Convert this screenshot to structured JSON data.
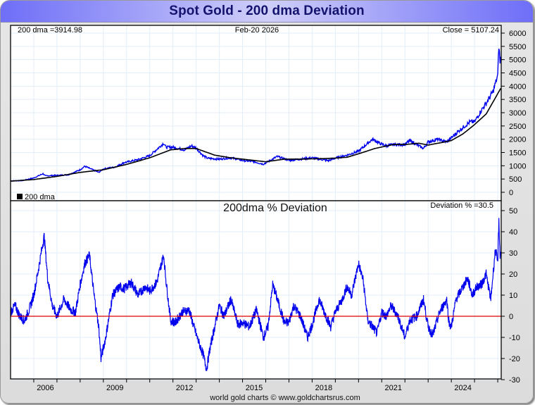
{
  "title": "Spot Gold - 200 dma Deviation",
  "footer": "world gold charts © www.goldchartsrus.com",
  "colors": {
    "price": "#0000ee",
    "dma": "#000000",
    "deviation": "#0000ee",
    "zero_line": "#dd0000",
    "grid": "#e3eef8"
  },
  "chart_data": [
    {
      "type": "line",
      "title": "",
      "header": {
        "left": "200 dma =3914.98",
        "center": "Feb-20  2026",
        "right": "Close = 5107.24"
      },
      "legend": {
        "label": "200 dma",
        "placement": "bottom-left"
      },
      "ylim": [
        0,
        6000
      ],
      "yticks": [
        "0",
        "500",
        "1000",
        "1500",
        "2000",
        "2500",
        "3000",
        "3500",
        "4000",
        "4500",
        "5000",
        "5500",
        "6000"
      ],
      "xlim": [
        2005.0,
        2026.15
      ],
      "grid": true,
      "series": [
        {
          "name": "Spot Gold",
          "x": [
            2005.0,
            2005.5,
            2006.0,
            2006.4,
            2006.5,
            2007.0,
            2007.5,
            2008.0,
            2008.2,
            2008.8,
            2009.0,
            2009.5,
            2009.9,
            2010.5,
            2011.0,
            2011.6,
            2011.7,
            2012.0,
            2012.5,
            2012.8,
            2013.0,
            2013.3,
            2013.5,
            2014.0,
            2014.5,
            2015.0,
            2015.5,
            2015.9,
            2016.5,
            2017.0,
            2017.5,
            2018.0,
            2018.7,
            2019.0,
            2019.5,
            2020.0,
            2020.6,
            2020.9,
            2021.2,
            2021.5,
            2022.0,
            2022.2,
            2022.8,
            2023.0,
            2023.4,
            2023.8,
            2024.0,
            2024.3,
            2024.8,
            2025.0,
            2025.3,
            2025.5,
            2025.8,
            2026.0,
            2026.05,
            2026.1,
            2026.13
          ],
          "y": [
            430,
            440,
            540,
            700,
            620,
            640,
            660,
            850,
            980,
            750,
            880,
            950,
            1120,
            1230,
            1380,
            1850,
            1700,
            1700,
            1600,
            1750,
            1670,
            1380,
            1280,
            1250,
            1300,
            1200,
            1150,
            1060,
            1350,
            1200,
            1250,
            1300,
            1190,
            1290,
            1400,
            1550,
            2000,
            1850,
            1750,
            1800,
            1800,
            1950,
            1650,
            1900,
            2000,
            1900,
            2050,
            2300,
            2650,
            2650,
            3100,
            3350,
            3800,
            4400,
            5550,
            4900,
            5107
          ]
        },
        {
          "name": "200 dma",
          "x": [
            2005.0,
            2006.0,
            2007.0,
            2008.0,
            2009.0,
            2010.0,
            2011.0,
            2011.9,
            2012.5,
            2013.0,
            2013.8,
            2014.5,
            2015.5,
            2016.0,
            2016.8,
            2017.5,
            2018.5,
            2019.0,
            2019.5,
            2020.0,
            2020.7,
            2021.5,
            2022.0,
            2022.6,
            2023.0,
            2023.5,
            2024.0,
            2024.5,
            2025.0,
            2025.5,
            2026.13
          ],
          "y": [
            420,
            480,
            600,
            750,
            850,
            1050,
            1300,
            1600,
            1650,
            1650,
            1400,
            1300,
            1200,
            1150,
            1250,
            1250,
            1270,
            1290,
            1320,
            1450,
            1650,
            1800,
            1800,
            1850,
            1780,
            1860,
            1950,
            2200,
            2550,
            2950,
            3915
          ]
        }
      ]
    },
    {
      "type": "line",
      "title": "200dma  %  Deviation",
      "header": {
        "right": "Deviation % =30.5"
      },
      "ylim": [
        -30,
        50
      ],
      "yticks": [
        "-30",
        "-20",
        "-10",
        "0",
        "10",
        "20",
        "30",
        "40",
        "50"
      ],
      "xlim": [
        2005.0,
        2026.15
      ],
      "xticks": [
        "2006",
        "2009",
        "2012",
        "2015",
        "2018",
        "2021",
        "2024"
      ],
      "grid": true,
      "reference_line": 0,
      "series": [
        {
          "name": "Deviation %",
          "x": [
            2005.0,
            2005.2,
            2005.4,
            2005.6,
            2005.8,
            2006.0,
            2006.2,
            2006.35,
            2006.45,
            2006.6,
            2006.8,
            2007.0,
            2007.3,
            2007.6,
            2007.8,
            2008.0,
            2008.2,
            2008.4,
            2008.6,
            2008.8,
            2008.9,
            2009.1,
            2009.4,
            2009.7,
            2009.9,
            2010.2,
            2010.5,
            2010.8,
            2011.0,
            2011.3,
            2011.6,
            2011.7,
            2011.9,
            2012.1,
            2012.4,
            2012.7,
            2012.9,
            2013.1,
            2013.3,
            2013.45,
            2013.6,
            2013.8,
            2014.0,
            2014.2,
            2014.5,
            2014.8,
            2015.0,
            2015.3,
            2015.6,
            2015.9,
            2016.1,
            2016.3,
            2016.5,
            2016.8,
            2017.0,
            2017.2,
            2017.5,
            2017.8,
            2018.0,
            2018.3,
            2018.6,
            2018.8,
            2019.0,
            2019.3,
            2019.5,
            2019.7,
            2020.0,
            2020.2,
            2020.4,
            2020.6,
            2020.8,
            2021.0,
            2021.2,
            2021.4,
            2021.7,
            2022.0,
            2022.2,
            2022.5,
            2022.8,
            2023.0,
            2023.2,
            2023.5,
            2023.8,
            2023.9,
            2024.0,
            2024.2,
            2024.4,
            2024.7,
            2024.9,
            2025.1,
            2025.3,
            2025.5,
            2025.7,
            2025.9,
            2026.0,
            2026.05,
            2026.1,
            2026.13
          ],
          "y": [
            2,
            5,
            0,
            -2,
            3,
            10,
            22,
            32,
            38,
            18,
            5,
            0,
            8,
            3,
            2,
            15,
            25,
            29,
            10,
            -5,
            -20,
            -10,
            10,
            14,
            13,
            16,
            10,
            14,
            12,
            16,
            29,
            17,
            -2,
            -3,
            2,
            3,
            -5,
            -12,
            -18,
            -25,
            -15,
            -5,
            5,
            0,
            8,
            -4,
            -3,
            -5,
            3,
            -10,
            -5,
            15,
            8,
            -3,
            -3,
            5,
            0,
            -10,
            -4,
            8,
            0,
            -5,
            2,
            8,
            14,
            10,
            25,
            17,
            -2,
            -5,
            -8,
            2,
            0,
            5,
            0,
            -10,
            -2,
            0,
            8,
            -5,
            -9,
            2,
            8,
            -3,
            -5,
            8,
            12,
            18,
            10,
            14,
            15,
            20,
            8,
            32,
            25,
            46,
            28,
            30.5
          ]
        }
      ]
    }
  ]
}
